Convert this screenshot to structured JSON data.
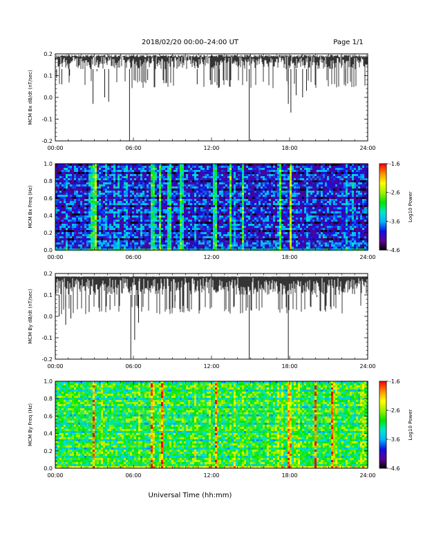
{
  "header": {
    "title": "2018/02/20  00:00–24:00 UT",
    "page": "Page 1/1"
  },
  "colors": {
    "trace": "#000000",
    "colormap": [
      "#000000",
      "#5a0096",
      "#1010e0",
      "#00b4ff",
      "#00e6c8",
      "#00e600",
      "#a0f000",
      "#ffff00",
      "#ff9000",
      "#ff0000"
    ]
  },
  "chart_data": [
    {
      "type": "line",
      "title": "",
      "ylabel": "MCM Bx dB/dt (nT/sec)",
      "xlabel": "",
      "xlim": [
        0,
        24
      ],
      "ylim": [
        -0.2,
        0.2
      ],
      "x_ticks": [
        "00:00",
        "06:00",
        "12:00",
        "18:00",
        "24:00"
      ],
      "y_ticks": [
        "0.2",
        "0.1",
        "0.0",
        "-0.1",
        "-0.2"
      ],
      "series": [
        {
          "baseline": 0.17,
          "noise_floor": 0.13,
          "spikes": [
            [
              0.1,
              0.09
            ],
            [
              0.5,
              0.06
            ],
            [
              1.1,
              0.1
            ],
            [
              2.9,
              -0.03
            ],
            [
              3.2,
              0.12
            ],
            [
              3.8,
              0.0
            ],
            [
              4.1,
              -0.02
            ],
            [
              5.7,
              -0.2
            ],
            [
              7.1,
              0.08
            ],
            [
              10.9,
              0.06
            ],
            [
              12.6,
              0.05
            ],
            [
              14.9,
              -0.2
            ],
            [
              17.9,
              -0.03
            ],
            [
              18.1,
              -0.07
            ],
            [
              18.5,
              0.01
            ],
            [
              19.0,
              0.0
            ],
            [
              19.3,
              0.03
            ],
            [
              22.3,
              0.07
            ]
          ]
        }
      ]
    },
    {
      "type": "heatmap",
      "title": "",
      "ylabel": "MCM Bx Freq (Hz)",
      "xlim": [
        0,
        24
      ],
      "ylim": [
        0.0,
        1.0
      ],
      "x_ticks": [
        "00:00",
        "06:00",
        "12:00",
        "18:00",
        "24:00"
      ],
      "y_ticks": [
        "1.0",
        "0.8",
        "0.6",
        "0.4",
        "0.2",
        "0.0"
      ],
      "colorbar": {
        "label": "Log10 Power",
        "range": [
          -4.6,
          -1.6
        ],
        "ticks": [
          "-1.6",
          "-2.6",
          "-3.6",
          "-4.6"
        ]
      },
      "background_log_power": -3.9,
      "bright_time_bands_hours": [
        2.8,
        3.0,
        7.4,
        8.0,
        8.7,
        9.6,
        12.2,
        13.4,
        14.3,
        17.2,
        18.0
      ]
    },
    {
      "type": "line",
      "title": "",
      "ylabel": "MCM By dB/dt (nT/sec)",
      "xlabel": "",
      "xlim": [
        0,
        24
      ],
      "ylim": [
        -0.2,
        0.2
      ],
      "x_ticks": [
        "00:00",
        "06:00",
        "12:00",
        "18:00",
        "24:00"
      ],
      "y_ticks": [
        "0.2",
        "0.1",
        "0.0",
        "-0.1",
        "-0.2"
      ],
      "series": [
        {
          "baseline": 0.16,
          "noise_floor": 0.1,
          "spikes": [
            [
              0.3,
              0.0
            ],
            [
              0.8,
              -0.04
            ],
            [
              1.2,
              -0.01
            ],
            [
              2.6,
              0.02
            ],
            [
              4.2,
              0.03
            ],
            [
              5.8,
              -0.2
            ],
            [
              6.1,
              -0.11
            ],
            [
              6.4,
              -0.03
            ],
            [
              9.2,
              0.07
            ],
            [
              14.9,
              -0.2
            ],
            [
              17.9,
              -0.2
            ],
            [
              20.1,
              0.09
            ]
          ]
        }
      ]
    },
    {
      "type": "heatmap",
      "title": "",
      "ylabel": "MCM By Freq (Hz)",
      "xlabel": "Universal Time (hh:mm)",
      "xlim": [
        0,
        24
      ],
      "ylim": [
        0.0,
        1.0
      ],
      "x_ticks": [
        "00:00",
        "06:00",
        "12:00",
        "18:00",
        "24:00"
      ],
      "y_ticks": [
        "1.0",
        "0.8",
        "0.6",
        "0.4",
        "0.2",
        "0.0"
      ],
      "colorbar": {
        "label": "Log10 Power",
        "range": [
          -4.6,
          -1.6
        ],
        "ticks": [
          "-1.6",
          "-2.6",
          "-3.6",
          "-4.6"
        ]
      },
      "background_log_power": -2.9,
      "bright_time_bands_hours": [
        2.9,
        7.3,
        8.1,
        12.3,
        17.9,
        19.9,
        21.2
      ]
    }
  ]
}
